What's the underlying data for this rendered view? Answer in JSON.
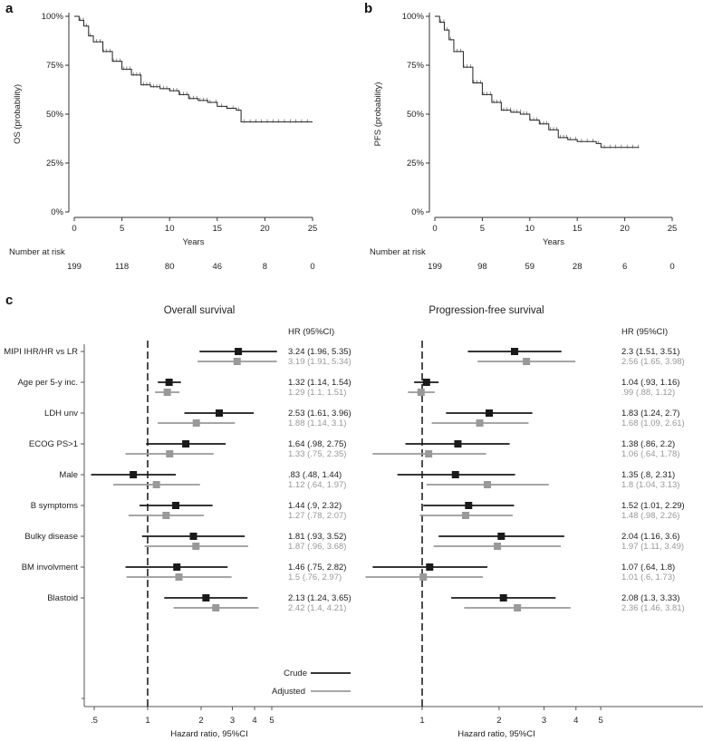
{
  "panel_labels": [
    "a",
    "b",
    "c"
  ],
  "chart_data": [
    {
      "type": "line",
      "panel": "a",
      "ylabel": "OS (probability)",
      "xlabel": "Years",
      "xticks": [
        "0",
        "5",
        "10",
        "15",
        "20",
        "25"
      ],
      "yticks": [
        "0%",
        "25%",
        "50%",
        "75%",
        "100%"
      ],
      "xlim": [
        0,
        25
      ],
      "ylim": [
        0,
        1
      ],
      "risk_label": "Number at risk",
      "at_risk": [
        "199",
        "118",
        "80",
        "46",
        "8",
        "0"
      ],
      "curve": [
        [
          0,
          1
        ],
        [
          0.5,
          0.98
        ],
        [
          1,
          0.95
        ],
        [
          1.5,
          0.9
        ],
        [
          2,
          0.87
        ],
        [
          3,
          0.82
        ],
        [
          4,
          0.77
        ],
        [
          5,
          0.73
        ],
        [
          6,
          0.7
        ],
        [
          7,
          0.65
        ],
        [
          8,
          0.64
        ],
        [
          9,
          0.63
        ],
        [
          10,
          0.62
        ],
        [
          11,
          0.6
        ],
        [
          12,
          0.58
        ],
        [
          13,
          0.57
        ],
        [
          14,
          0.56
        ],
        [
          15,
          0.54
        ],
        [
          16,
          0.53
        ],
        [
          17,
          0.52
        ],
        [
          17.5,
          0.46
        ],
        [
          25,
          0.46
        ]
      ]
    },
    {
      "type": "line",
      "panel": "b",
      "ylabel": "PFS (probability)",
      "xlabel": "Years",
      "xticks": [
        "0",
        "5",
        "10",
        "15",
        "20",
        "25"
      ],
      "yticks": [
        "0%",
        "25%",
        "50%",
        "75%",
        "100%"
      ],
      "xlim": [
        0,
        25
      ],
      "ylim": [
        0,
        1
      ],
      "risk_label": "Number at risk",
      "at_risk": [
        "199",
        "98",
        "59",
        "28",
        "6",
        "0"
      ],
      "curve": [
        [
          0,
          1
        ],
        [
          0.5,
          0.97
        ],
        [
          1,
          0.93
        ],
        [
          1.5,
          0.88
        ],
        [
          2,
          0.82
        ],
        [
          3,
          0.74
        ],
        [
          4,
          0.66
        ],
        [
          5,
          0.6
        ],
        [
          6,
          0.56
        ],
        [
          7,
          0.52
        ],
        [
          8,
          0.51
        ],
        [
          9,
          0.5
        ],
        [
          10,
          0.47
        ],
        [
          11,
          0.45
        ],
        [
          12,
          0.42
        ],
        [
          13,
          0.38
        ],
        [
          14,
          0.37
        ],
        [
          15,
          0.36
        ],
        [
          17,
          0.35
        ],
        [
          17.5,
          0.33
        ],
        [
          21.5,
          0.33
        ]
      ]
    },
    {
      "type": "forest",
      "panel": "c",
      "titles": [
        "Overall survival",
        "Progression-free survival"
      ],
      "hr_header": "HR (95%CI)",
      "xlabel": "Hazard ratio, 95%CI",
      "xticks_os": [
        ".5",
        "1",
        "2",
        "3",
        "4",
        "5"
      ],
      "xticks_pfs": [
        "1",
        "2",
        "3",
        "4",
        "5"
      ],
      "legend": {
        "crude": "Crude",
        "adjusted": "Adjusted"
      },
      "colors": {
        "crude": "#1a1a1a",
        "adjusted": "#999999"
      },
      "rows": [
        {
          "label": "MIPI IHR/HR vs LR",
          "os": {
            "crude": [
              3.24,
              1.96,
              5.35
            ],
            "adj": [
              3.19,
              1.91,
              5.34
            ],
            "crude_txt": "3.24 (1.96, 5.35)",
            "adj_txt": "3.19 (1.91, 5.34)"
          },
          "pfs": {
            "crude": [
              2.3,
              1.51,
              3.51
            ],
            "adj": [
              2.56,
              1.65,
              3.98
            ],
            "crude_txt": "2.3 (1.51, 3.51)",
            "adj_txt": "2.56 (1.65, 3.98)"
          }
        },
        {
          "label": "Age per 5-y inc.",
          "os": {
            "crude": [
              1.32,
              1.14,
              1.54
            ],
            "adj": [
              1.29,
              1.1,
              1.51
            ],
            "crude_txt": "1.32 (1.14, 1.54)",
            "adj_txt": "1.29 (1.1, 1.51)"
          },
          "pfs": {
            "crude": [
              1.04,
              0.93,
              1.16
            ],
            "adj": [
              0.99,
              0.88,
              1.12
            ],
            "crude_txt": "1.04 (.93, 1.16)",
            "adj_txt": ".99 (.88, 1.12)"
          }
        },
        {
          "label": "LDH unv",
          "os": {
            "crude": [
              2.53,
              1.61,
              3.96
            ],
            "adj": [
              1.88,
              1.14,
              3.1
            ],
            "crude_txt": "2.53 (1.61, 3.96)",
            "adj_txt": "1.88 (1.14, 3.1)"
          },
          "pfs": {
            "crude": [
              1.83,
              1.24,
              2.7
            ],
            "adj": [
              1.68,
              1.09,
              2.61
            ],
            "crude_txt": "1.83 (1.24, 2.7)",
            "adj_txt": "1.68 (1.09, 2.61)"
          }
        },
        {
          "label": "ECOG PS>1",
          "os": {
            "crude": [
              1.64,
              0.98,
              2.75
            ],
            "adj": [
              1.33,
              0.75,
              2.35
            ],
            "crude_txt": "1.64 (.98, 2.75)",
            "adj_txt": "1.33 (.75, 2.35)"
          },
          "pfs": {
            "crude": [
              1.38,
              0.86,
              2.2
            ],
            "adj": [
              1.06,
              0.64,
              1.78
            ],
            "crude_txt": "1.38 (.86, 2.2)",
            "adj_txt": "1.06 (.64, 1.78)"
          }
        },
        {
          "label": "Male",
          "os": {
            "crude": [
              0.83,
              0.48,
              1.44
            ],
            "adj": [
              1.12,
              0.64,
              1.97
            ],
            "crude_txt": ".83 (.48, 1.44)",
            "adj_txt": "1.12 (.64, 1.97)"
          },
          "pfs": {
            "crude": [
              1.35,
              0.8,
              2.31
            ],
            "adj": [
              1.8,
              1.04,
              3.13
            ],
            "crude_txt": "1.35 (.8, 2.31)",
            "adj_txt": "1.8 (1.04, 3.13)"
          }
        },
        {
          "label": "B symptoms",
          "os": {
            "crude": [
              1.44,
              0.9,
              2.32
            ],
            "adj": [
              1.27,
              0.78,
              2.07
            ],
            "crude_txt": "1.44 (.9, 2.32)",
            "adj_txt": "1.27 (.78, 2.07)"
          },
          "pfs": {
            "crude": [
              1.52,
              1.01,
              2.29
            ],
            "adj": [
              1.48,
              0.98,
              2.26
            ],
            "crude_txt": "1.52 (1.01, 2.29)",
            "adj_txt": "1.48 (.98, 2.26)"
          }
        },
        {
          "label": "Bulky disease",
          "os": {
            "crude": [
              1.81,
              0.93,
              3.52
            ],
            "adj": [
              1.87,
              0.96,
              3.68
            ],
            "crude_txt": "1.81 (.93, 3.52)",
            "adj_txt": "1.87 (.96, 3.68)"
          },
          "pfs": {
            "crude": [
              2.04,
              1.16,
              3.6
            ],
            "adj": [
              1.97,
              1.11,
              3.49
            ],
            "crude_txt": "2.04 (1.16, 3.6)",
            "adj_txt": "1.97 (1.11, 3.49)"
          }
        },
        {
          "label": "BM involvment",
          "os": {
            "crude": [
              1.46,
              0.75,
              2.82
            ],
            "adj": [
              1.5,
              0.76,
              2.97
            ],
            "crude_txt": "1.46 (.75, 2.82)",
            "adj_txt": "1.5 (.76, 2.97)"
          },
          "pfs": {
            "crude": [
              1.07,
              0.64,
              1.8
            ],
            "adj": [
              1.01,
              0.6,
              1.73
            ],
            "crude_txt": "1.07 (.64, 1.8)",
            "adj_txt": "1.01 (.6, 1.73)"
          }
        },
        {
          "label": "Blastoid",
          "os": {
            "crude": [
              2.13,
              1.24,
              3.65
            ],
            "adj": [
              2.42,
              1.4,
              4.21
            ],
            "crude_txt": "2.13 (1.24, 3.65)",
            "adj_txt": "2.42 (1.4, 4.21)"
          },
          "pfs": {
            "crude": [
              2.08,
              1.3,
              3.33
            ],
            "adj": [
              2.36,
              1.46,
              3.81
            ],
            "crude_txt": "2.08 (1.3, 3.33)",
            "adj_txt": "2.36 (1.46, 3.81)"
          }
        }
      ]
    }
  ]
}
